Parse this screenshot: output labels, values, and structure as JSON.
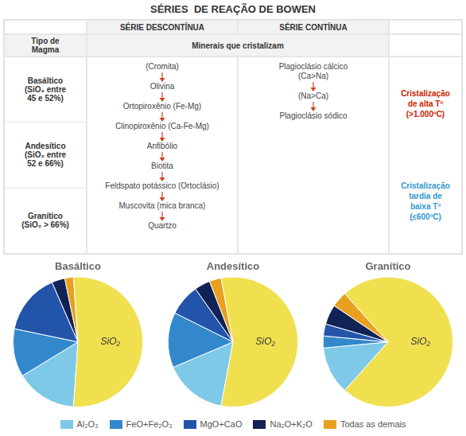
{
  "chart_data": [
    {
      "type": "table",
      "title": "SÉRIES  DE REAÇÃO DE BOWEN",
      "column_groups": [
        "SÉRIE DESCONTÍNUA",
        "SÉRIE CONTÍNUA"
      ],
      "columns": [
        "Tipo de\nMagma",
        "Minerais que cristalizam"
      ],
      "rows": [
        "Basáltico\n(SiO₂ entre\n45 e 52%)",
        "Andesítico\n(SiO₂ entre\n52 e 66%)",
        "Granítico\n(SiO₂ > 66%)"
      ],
      "series": [
        {
          "name": "SÉRIE DESCONTÍNUA",
          "color": "#cc4422",
          "values": [
            "(Cromita)",
            "Olivina",
            "Ortopiroxênio (Fe-Mg)",
            "Clinopiroxênio (Ca-Fe-Mg)",
            "Anfibólio",
            "Biotita",
            "Feldspato potássico (Ortoclásio)",
            "Muscovita (mica branca)",
            "Quartzo"
          ]
        },
        {
          "name": "SÉRIE CONTÍNUA",
          "color": "#cc4422",
          "values": [
            "Plagioclásio cálcico\n(Ca>Na)",
            "(Na>Ca)",
            "Plagioclásio sódico"
          ]
        }
      ],
      "annotations": [
        {
          "text": "Cristalização\nde alta Tº\n(>1.000ºC)",
          "color": "#cc2200"
        },
        {
          "text": "Cristalização\ntardia de\nbaixa Tº\n(≤600ºC)",
          "color": "#3399cc"
        }
      ]
    },
    {
      "type": "pie",
      "title": "Basáltico",
      "categories": [
        "Al₂O₃",
        "FeO+Fe₂O₃",
        "MgO+CaO",
        "Na₂O+K₂O",
        "Todas as demais",
        "SiO₂"
      ],
      "values": [
        14,
        11,
        14,
        3,
        2,
        48
      ],
      "colors": [
        "#7ec8e8",
        "#3388cc",
        "#2255aa",
        "#112255",
        "#e8a020",
        "#f0e050"
      ],
      "legend": "bottom"
    },
    {
      "type": "pie",
      "title": "Andesítico",
      "categories": [
        "Al₂O₃",
        "FeO+Fe₂O₃",
        "MgO+CaO",
        "Na₂O+K₂O",
        "Todas as demais",
        "SiO₂"
      ],
      "values": [
        16,
        14,
        8,
        4,
        3,
        57
      ],
      "colors": [
        "#7ec8e8",
        "#3388cc",
        "#2255aa",
        "#112255",
        "#e8a020",
        "#f0e050"
      ],
      "legend": "bottom"
    },
    {
      "type": "pie",
      "title": "Granítico",
      "categories": [
        "Al₂O₃",
        "FeO+Fe₂O₃",
        "MgO+CaO",
        "Na₂O+K₂O",
        "Todas as demais",
        "SiO₂"
      ],
      "values": [
        12,
        3,
        3,
        5,
        4,
        74
      ],
      "colors": [
        "#7ec8e8",
        "#3388cc",
        "#2255aa",
        "#112255",
        "#e8a020",
        "#f0e050"
      ],
      "legend": "bottom"
    }
  ]
}
